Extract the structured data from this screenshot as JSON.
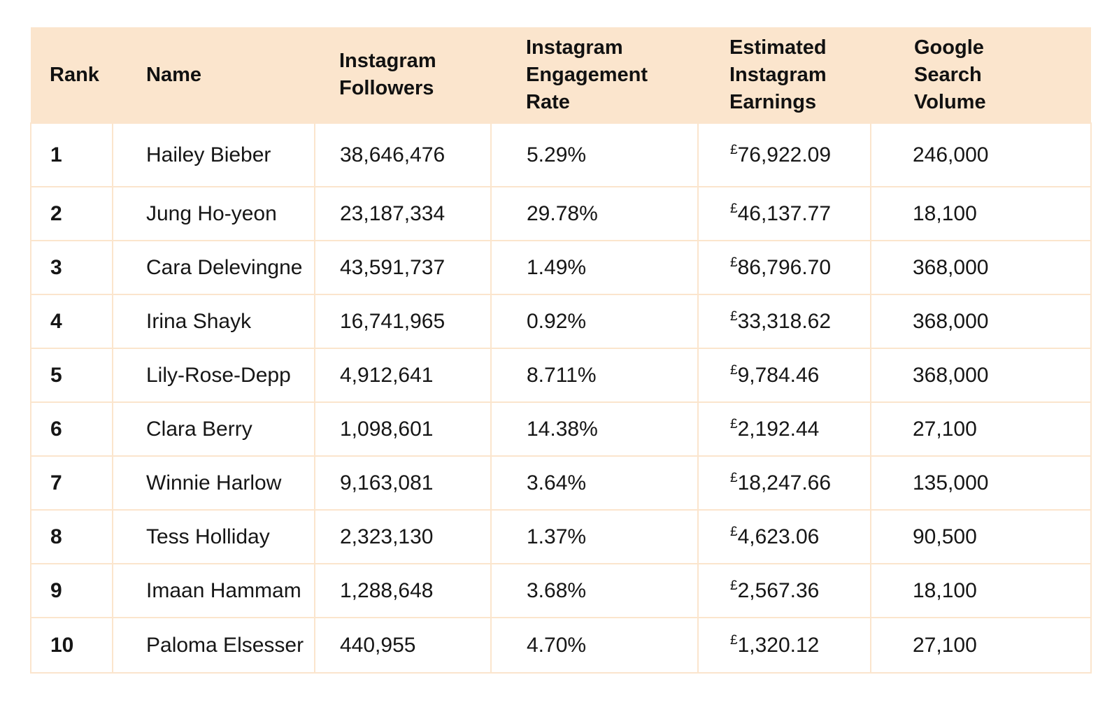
{
  "table": {
    "headers": {
      "rank": "Rank",
      "name": "Name",
      "followers": [
        "Instagram",
        "Followers"
      ],
      "engagement": [
        "Instagram",
        "Engagement",
        "Rate"
      ],
      "earnings": [
        "Estimated",
        "Instagram",
        "Earnings"
      ],
      "search": [
        "Google",
        "Search",
        "Volume"
      ]
    },
    "currency_symbol": "£",
    "rows": [
      {
        "rank": "1",
        "name": "Hailey Bieber",
        "followers": "38,646,476",
        "engagement": "5.29%",
        "earnings": "76,922.09",
        "search": "246,000"
      },
      {
        "rank": "2",
        "name": "Jung Ho-yeon",
        "followers": "23,187,334",
        "engagement": "29.78%",
        "earnings": "46,137.77",
        "search": "18,100"
      },
      {
        "rank": "3",
        "name": "Cara Delevingne",
        "followers": "43,591,737",
        "engagement": "1.49%",
        "earnings": "86,796.70",
        "search": "368,000"
      },
      {
        "rank": "4",
        "name": "Irina Shayk",
        "followers": "16,741,965",
        "engagement": "0.92%",
        "earnings": "33,318.62",
        "search": "368,000"
      },
      {
        "rank": "5",
        "name": "Lily-Rose-Depp",
        "followers": "4,912,641",
        "engagement": "8.711%",
        "earnings": "9,784.46",
        "search": "368,000"
      },
      {
        "rank": "6",
        "name": "Clara Berry",
        "followers": "1,098,601",
        "engagement": "14.38%",
        "earnings": "2,192.44",
        "search": "27,100"
      },
      {
        "rank": "7",
        "name": "Winnie Harlow",
        "followers": "9,163,081",
        "engagement": "3.64%",
        "earnings": "18,247.66",
        "search": "135,000"
      },
      {
        "rank": "8",
        "name": "Tess Holliday",
        "followers": "2,323,130",
        "engagement": "1.37%",
        "earnings": "4,623.06",
        "search": "90,500"
      },
      {
        "rank": "9",
        "name": "Imaan Hammam",
        "followers": "1,288,648",
        "engagement": "3.68%",
        "earnings": "2,567.36",
        "search": "18,100"
      },
      {
        "rank": "10",
        "name": "Paloma Elsesser",
        "followers": "440,955",
        "engagement": "4.70%",
        "earnings": "1,320.12",
        "search": "27,100"
      }
    ]
  },
  "colors": {
    "header_background": "#fbe5cd",
    "border": "#fbe5cd",
    "text": "#111111"
  }
}
